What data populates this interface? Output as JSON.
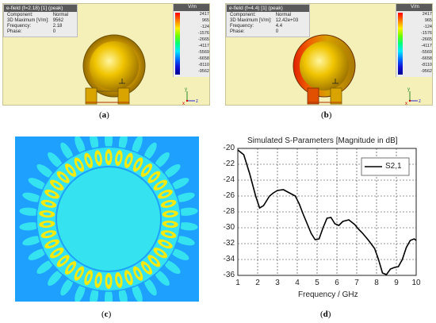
{
  "panel_a": {
    "header": "e-field (f=2.18) [1] (peak)",
    "rows": [
      {
        "k": "Component:",
        "v": "Normal"
      },
      {
        "k": "3D Maximum [V/m]:",
        "v": "9562"
      },
      {
        "k": "Frequency:",
        "v": "2.18"
      },
      {
        "k": "Phase:",
        "v": "0"
      }
    ],
    "unit": "V/m",
    "ticks": [
      "2417",
      "965",
      "-124",
      "-1576",
      "-2665",
      "-4117",
      "-5569",
      "-6658",
      "-8110",
      "-9562"
    ],
    "caption_label": "a"
  },
  "panel_b": {
    "header": "e-field (f=4.4) [1] (peak)",
    "rows": [
      {
        "k": "Component:",
        "v": "Normal"
      },
      {
        "k": "3D Maximum [V/m]:",
        "v": "12.42e+03"
      },
      {
        "k": "Frequency:",
        "v": "4.4"
      },
      {
        "k": "Phase:",
        "v": "0"
      }
    ],
    "unit": "V/m",
    "ticks": [
      "2417",
      "965",
      "-124",
      "-1576",
      "-2665",
      "-4117",
      "-5569",
      "-6658",
      "-8110",
      "-9562"
    ],
    "caption_label": "b"
  },
  "panel_c": {
    "caption_label": "c"
  },
  "panel_d": {
    "caption_label": "d"
  },
  "axis_glyphs": {
    "y": "y",
    "z": "z",
    "x": "x"
  },
  "colors": {
    "sim_bg": "#f4f0b8",
    "field_bg": "#1ea0ff",
    "field_cyan": "#35e3f0",
    "field_yellow": "#f5ea10"
  },
  "chart_data": {
    "type": "line",
    "title": "Simulated S-Parameters [Magnitude in dB]",
    "xlabel": "Frequency / GHz",
    "ylabel": "",
    "xlim": [
      1,
      10
    ],
    "ylim": [
      -36,
      -20
    ],
    "xticks": [
      "1",
      "2",
      "3",
      "4",
      "5",
      "6",
      "7",
      "8",
      "9",
      "10"
    ],
    "yticks": [
      "-20",
      "-22",
      "-24",
      "-26",
      "-28",
      "-30",
      "-32",
      "-34",
      "-36"
    ],
    "grid": true,
    "legend": "top-right",
    "series": [
      {
        "name": "S2,1",
        "x": [
          1.0,
          1.3,
          1.6,
          1.9,
          2.1,
          2.3,
          2.6,
          2.8,
          3.0,
          3.3,
          3.6,
          3.9,
          4.1,
          4.3,
          4.5,
          4.7,
          4.9,
          5.1,
          5.3,
          5.5,
          5.7,
          5.9,
          6.1,
          6.3,
          6.6,
          6.9,
          7.1,
          7.3,
          7.6,
          7.9,
          8.1,
          8.3,
          8.5,
          8.7,
          8.9,
          9.1,
          9.3,
          9.5,
          9.7,
          9.9,
          10.0
        ],
        "y": [
          -20.2,
          -20.8,
          -23.2,
          -26.0,
          -27.5,
          -27.2,
          -26.0,
          -25.6,
          -25.3,
          -25.2,
          -25.6,
          -26.0,
          -27.0,
          -28.3,
          -29.5,
          -30.7,
          -31.5,
          -31.4,
          -30.0,
          -28.8,
          -28.7,
          -29.5,
          -29.7,
          -29.2,
          -29.0,
          -29.6,
          -30.2,
          -30.7,
          -31.6,
          -32.6,
          -34.0,
          -35.7,
          -35.9,
          -35.2,
          -35.0,
          -34.9,
          -34.0,
          -32.5,
          -31.6,
          -31.4,
          -31.6
        ]
      }
    ]
  }
}
